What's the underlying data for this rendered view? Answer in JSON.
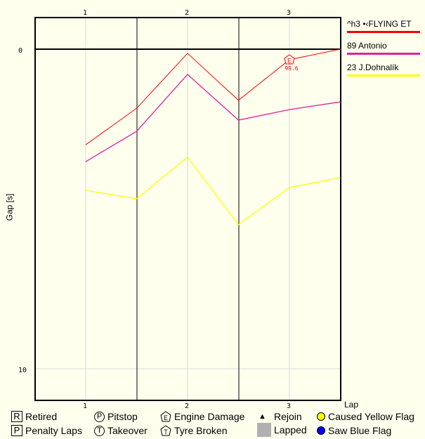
{
  "chart_data": {
    "type": "line",
    "title": "",
    "xlabel": "Lap",
    "ylabel": "Gap [s]",
    "x_ticks": [
      "1",
      "2",
      "3"
    ],
    "y_ticks": [
      "0",
      "10"
    ],
    "xlim": [
      0.5,
      3.5
    ],
    "ylim": [
      11,
      -1
    ],
    "x": [
      1,
      1.5,
      2,
      2.5,
      3,
      3.5
    ],
    "series": [
      {
        "name": "^h3 •‹FLYING ET",
        "color": "#ff0000",
        "values": [
          2.99,
          1.85,
          0.13,
          1.6,
          0.33,
          0.0
        ]
      },
      {
        "name": "89 Antonio",
        "color": "#e020a0",
        "values": [
          3.52,
          2.57,
          0.79,
          2.22,
          1.89,
          1.65
        ]
      },
      {
        "name": "23 J.Dohnalík",
        "color": "#ffff00",
        "values": [
          4.42,
          4.68,
          3.38,
          5.49,
          4.33,
          4.02
        ]
      }
    ],
    "annotations": [
      {
        "series": "^h3 •‹FLYING ET",
        "x": 3,
        "y": 0.33,
        "symbol": "E",
        "meaning": "Engine Damage",
        "label": "99.6"
      }
    ],
    "grid": true,
    "legend_position": "right"
  },
  "axes": {
    "xlabel": "Lap",
    "ylabel": "Gap [s]",
    "top_ticks": [
      "1",
      "2",
      "3"
    ],
    "bottom_ticks": [
      "1",
      "2",
      "3"
    ],
    "y_ticks": [
      "0",
      "10"
    ]
  },
  "drivers": [
    {
      "name": "^h3 •‹FLYING ET",
      "color": "#ff0000"
    },
    {
      "name": "89 Antonio",
      "color": "#e020a0"
    },
    {
      "name": "23 J.Dohnalík",
      "color": "#ffff00"
    }
  ],
  "annotation": {
    "symbol": "E",
    "value": "99.6"
  },
  "key": {
    "retired": {
      "symbol": "R",
      "label": "Retired"
    },
    "penalty": {
      "symbol": "P",
      "label": "Penalty Laps"
    },
    "pitstop": {
      "symbol": "P",
      "label": "Pitstop"
    },
    "takeover": {
      "symbol": "T",
      "label": "Takeover"
    },
    "engine": {
      "symbol": "E",
      "label": "Engine Damage"
    },
    "tyre": {
      "symbol": "T",
      "label": "Tyre Broken"
    },
    "rejoin": {
      "symbol": "▲",
      "label": "Rejoin"
    },
    "lapped": {
      "label": "Lapped"
    },
    "yellow": {
      "label": "Caused Yellow Flag",
      "color": "#ffff00"
    },
    "blue": {
      "label": "Saw Blue Flag",
      "color": "#0000ff"
    }
  }
}
